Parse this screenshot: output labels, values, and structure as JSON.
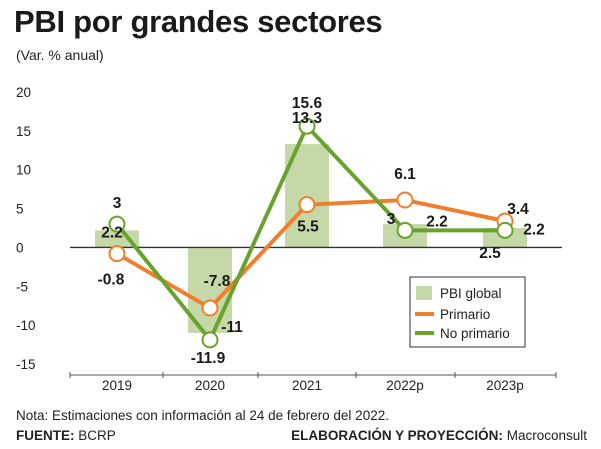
{
  "header": {
    "title": "PBI por grandes sectores",
    "subtitle": "(Var. % anual)"
  },
  "footer": {
    "note": "Nota: Estimaciones con información al 24 de febrero del 2022.",
    "source_label": "FUENTE:",
    "source_value": "BCRP",
    "credit_label": "ELABORACIÓN Y PROYECCIÓN:",
    "credit_value": "Macroconsult"
  },
  "colors": {
    "bar": "#c5d8a8",
    "primario": "#f07f2d",
    "no_primario": "#6aa22e",
    "axis": "#333333"
  },
  "chart_data": {
    "type": "bar",
    "title": "PBI por grandes sectores",
    "subtitle": "(Var. % anual)",
    "categories": [
      "2019",
      "2020",
      "2021",
      "2022p",
      "2023p"
    ],
    "ylim": [
      -15,
      20
    ],
    "yticks": [
      "20",
      "15",
      "10",
      "5",
      "0",
      "-5",
      "-10",
      "-15"
    ],
    "ytick_values": [
      20,
      15,
      10,
      5,
      0,
      -5,
      -10,
      -15
    ],
    "grid": false,
    "legend_position": "bottom-right",
    "series": [
      {
        "name": "PBI global",
        "kind": "bar",
        "values": [
          2.2,
          -11,
          13.3,
          3,
          2.5
        ],
        "labels": [
          "2.2",
          "-11",
          "13.3",
          "3",
          "2.5"
        ]
      },
      {
        "name": "Primario",
        "kind": "line",
        "values": [
          -0.8,
          -7.8,
          5.5,
          6.1,
          3.4
        ],
        "labels": [
          "-0.8",
          "-7.8",
          "5.5",
          "6.1",
          "3.4"
        ]
      },
      {
        "name": "No primario",
        "kind": "line",
        "values": [
          3,
          -11.9,
          15.6,
          2.2,
          2.2
        ],
        "labels": [
          "3",
          "-11.9",
          "15.6",
          "2.2",
          "2.2"
        ]
      }
    ]
  }
}
